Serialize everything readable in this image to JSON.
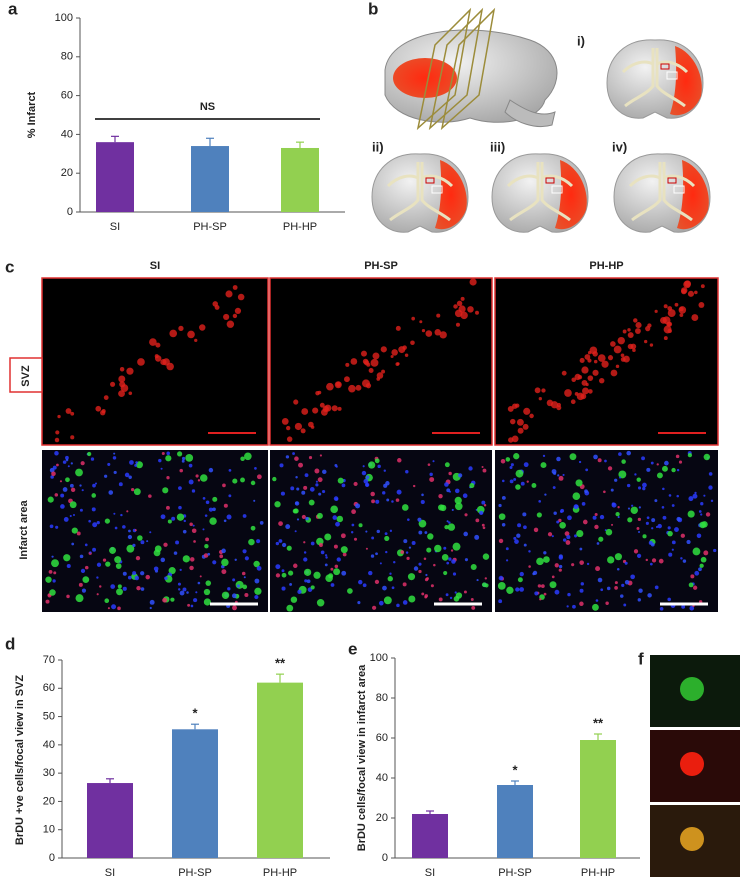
{
  "panel_labels": [
    "a",
    "b",
    "c",
    "d",
    "e",
    "f"
  ],
  "section_labels": [
    "i)",
    "ii)",
    "iii)",
    "iv)"
  ],
  "micrographs": {
    "columns": [
      "SI",
      "PH-SP",
      "PH-HP"
    ],
    "rows": [
      "SVZ",
      "Infarct area"
    ]
  },
  "chart_data": [
    {
      "type": "bar",
      "y_label": "% Infarct",
      "categories": [
        "SI",
        "PH-SP",
        "PH-HP"
      ],
      "values": [
        36,
        34,
        33
      ],
      "errors": [
        3,
        4,
        3
      ],
      "colors": [
        "#7030a0",
        "#4f81bd",
        "#92d050"
      ],
      "ylim": [
        0,
        100
      ],
      "yticks": [
        0,
        20,
        40,
        60,
        80,
        100
      ],
      "annotation": "NS"
    },
    {
      "type": "bar",
      "y_label": "BrDU +ve cells/focal view in SVZ",
      "categories": [
        "SI",
        "PH-SP",
        "PH-HP"
      ],
      "values": [
        26.5,
        45.5,
        62
      ],
      "errors": [
        1.5,
        1.8,
        3
      ],
      "significance": [
        null,
        "*",
        "**"
      ],
      "colors": [
        "#7030a0",
        "#4f81bd",
        "#92d050"
      ],
      "ylim": [
        0,
        70
      ],
      "yticks": [
        0,
        10,
        20,
        30,
        40,
        50,
        60,
        70
      ]
    },
    {
      "type": "bar",
      "y_label": "BrDU cells/focal view in infarct area",
      "categories": [
        "SI",
        "PH-SP",
        "PH-HP"
      ],
      "values": [
        22,
        36.5,
        59
      ],
      "errors": [
        1.5,
        2,
        3
      ],
      "significance": [
        null,
        "*",
        "**"
      ],
      "colors": [
        "#7030a0",
        "#4f81bd",
        "#92d050"
      ],
      "ylim": [
        0,
        100
      ],
      "yticks": [
        0,
        20,
        40,
        60,
        80,
        100
      ]
    }
  ]
}
